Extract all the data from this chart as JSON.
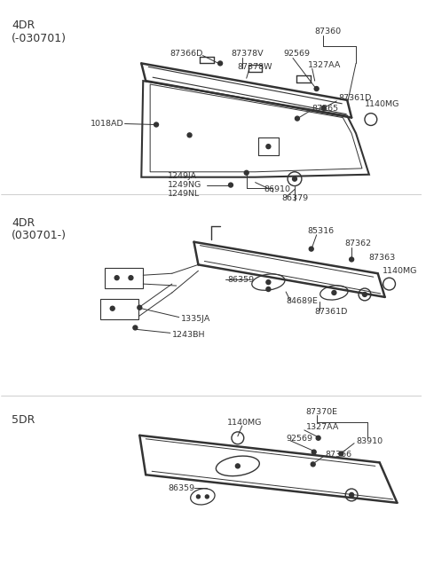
{
  "background_color": "#ffffff",
  "line_color": "#333333",
  "text_color": "#333333",
  "sec1_label": "4DR",
  "sec1_sublabel": "(-030701)",
  "sec2_label": "4DR",
  "sec2_sublabel": "(030701-)",
  "sec3_label": "5DR"
}
